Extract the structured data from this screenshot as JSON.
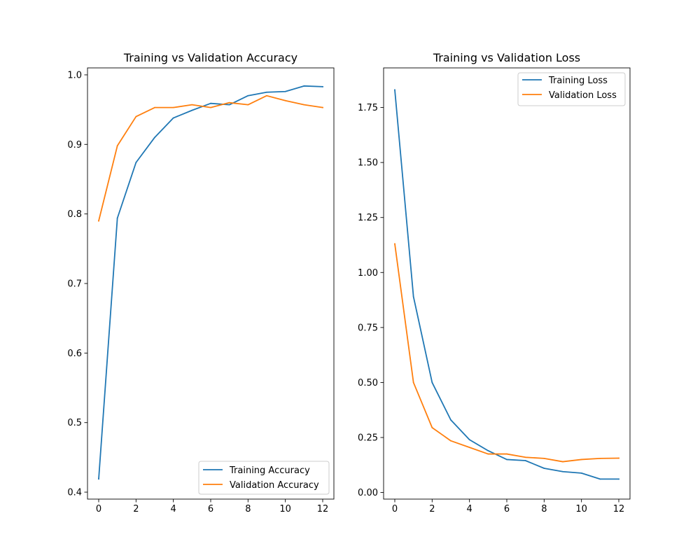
{
  "chart_data": [
    {
      "type": "line",
      "title": "Training vs Validation Accuracy",
      "xlabel": "",
      "ylabel": "",
      "x": [
        0,
        1,
        2,
        3,
        4,
        5,
        6,
        7,
        8,
        9,
        10,
        11,
        12
      ],
      "xlim": [
        -0.6,
        12.6
      ],
      "ylim": [
        0.39,
        1.01
      ],
      "xticks": [
        0,
        2,
        4,
        6,
        8,
        10,
        12
      ],
      "yticks": [
        0.4,
        0.5,
        0.6,
        0.7,
        0.8,
        0.9,
        1.0
      ],
      "ytick_labels": [
        "0.4",
        "0.5",
        "0.6",
        "0.7",
        "0.8",
        "0.9",
        "1.0"
      ],
      "legend_position": "lower-right",
      "grid": false,
      "series": [
        {
          "name": "Training Accuracy",
          "color": "#1f77b4",
          "values": [
            0.419,
            0.794,
            0.874,
            0.91,
            0.938,
            0.949,
            0.959,
            0.957,
            0.97,
            0.975,
            0.976,
            0.984,
            0.983
          ]
        },
        {
          "name": "Validation Accuracy",
          "color": "#ff7f0e",
          "values": [
            0.79,
            0.898,
            0.94,
            0.953,
            0.953,
            0.957,
            0.953,
            0.96,
            0.957,
            0.97,
            0.963,
            0.957,
            0.953
          ]
        }
      ]
    },
    {
      "type": "line",
      "title": "Training vs Validation Loss",
      "xlabel": "",
      "ylabel": "",
      "x": [
        0,
        1,
        2,
        3,
        4,
        5,
        6,
        7,
        8,
        9,
        10,
        11,
        12
      ],
      "xlim": [
        -0.6,
        12.6
      ],
      "ylim": [
        -0.03,
        1.93
      ],
      "xticks": [
        0,
        2,
        4,
        6,
        8,
        10,
        12
      ],
      "yticks": [
        0.0,
        0.25,
        0.5,
        0.75,
        1.0,
        1.25,
        1.5,
        1.75
      ],
      "ytick_labels": [
        "0.00",
        "0.25",
        "0.50",
        "0.75",
        "1.00",
        "1.25",
        "1.50",
        "1.75"
      ],
      "legend_position": "upper-right",
      "grid": false,
      "series": [
        {
          "name": "Training Loss",
          "color": "#1f77b4",
          "values": [
            1.83,
            0.89,
            0.5,
            0.33,
            0.24,
            0.19,
            0.15,
            0.145,
            0.11,
            0.095,
            0.088,
            0.061,
            0.061
          ]
        },
        {
          "name": "Validation Loss",
          "color": "#ff7f0e",
          "values": [
            1.13,
            0.5,
            0.295,
            0.235,
            0.205,
            0.175,
            0.175,
            0.16,
            0.155,
            0.14,
            0.15,
            0.155,
            0.156
          ]
        }
      ]
    }
  ]
}
